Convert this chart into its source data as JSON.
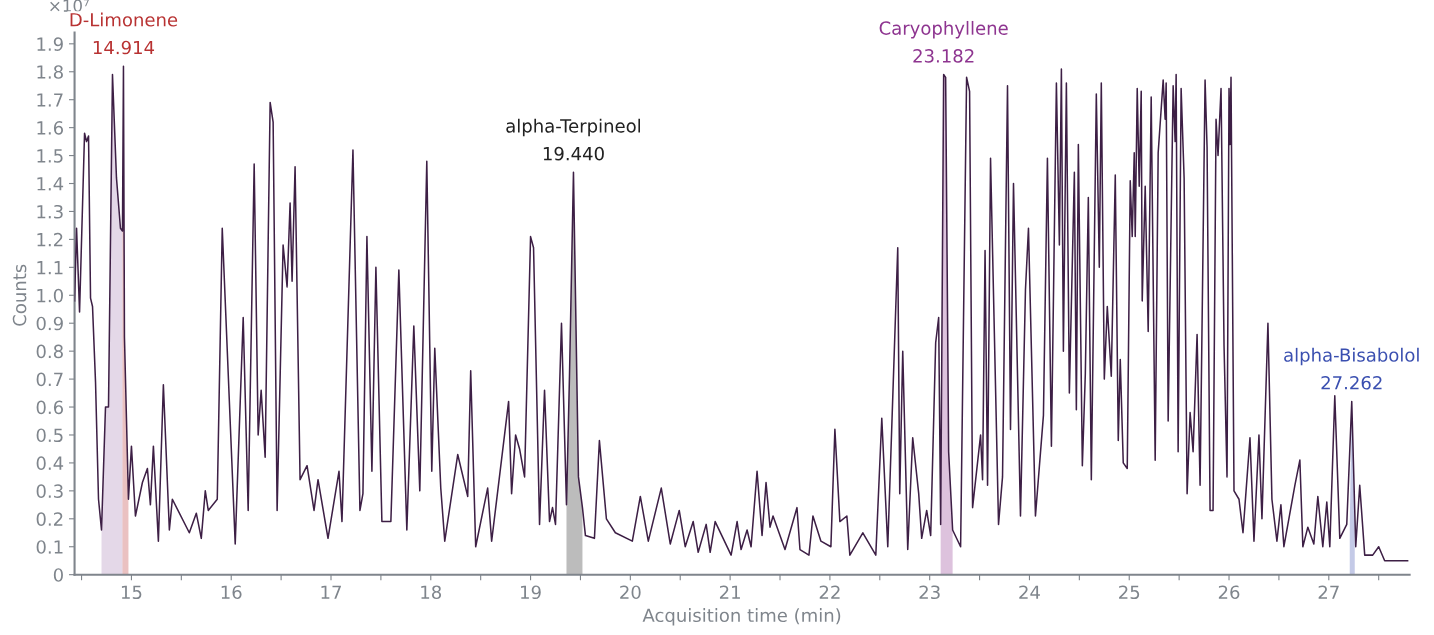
{
  "chart_data": {
    "type": "line",
    "xlabel": "Acquisition time (min)",
    "ylabel": "Counts",
    "xlim": [
      14.43,
      27.81
    ],
    "ylim": [
      0,
      2.0
    ],
    "xticks": [
      {
        "value": 14.5,
        "label": null
      },
      15,
      {
        "value": 15.5,
        "label": null
      },
      16,
      {
        "value": 16.5,
        "label": null
      },
      17,
      {
        "value": 17.5,
        "label": null
      },
      18,
      {
        "value": 18.5,
        "label": null
      },
      19,
      {
        "value": 19.5,
        "label": null
      },
      20,
      {
        "value": 20.5,
        "label": null
      },
      21,
      {
        "value": 21.5,
        "label": null
      },
      22,
      {
        "value": 22.5,
        "label": null
      },
      23,
      {
        "value": 23.5,
        "label": null
      },
      24,
      {
        "value": 24.5,
        "label": null
      },
      25,
      {
        "value": 25.5,
        "label": null
      },
      26,
      {
        "value": 26.5,
        "label": null
      },
      27,
      {
        "value": 27.5,
        "label": null
      }
    ],
    "yticks": [
      0,
      0.1,
      0.2,
      0.3,
      0.4,
      0.5,
      0.6,
      0.7,
      0.8,
      0.9,
      {
        "value": 1.0,
        "label": "1.0"
      },
      1.1,
      1.2,
      1.3,
      1.4,
      1.5,
      1.6,
      1.7,
      1.8,
      1.9
    ],
    "grid": false,
    "legend": false,
    "marker": "none",
    "line_style": "solid",
    "series": [
      {
        "color": "#3d1f45",
        "x": [
          14.43,
          14.45,
          14.48,
          14.53,
          14.55,
          14.57,
          14.59,
          14.61,
          14.64,
          14.67,
          14.7,
          14.74,
          14.77,
          14.81,
          14.85,
          14.89,
          14.91,
          14.92,
          14.93,
          14.97,
          15.0,
          15.04,
          15.11,
          15.16,
          15.19,
          15.22,
          15.27,
          15.32,
          15.38,
          15.41,
          15.58,
          15.65,
          15.7,
          15.74,
          15.77,
          15.86,
          15.91,
          16.04,
          16.12,
          16.17,
          16.23,
          16.27,
          16.3,
          16.34,
          16.39,
          16.42,
          16.46,
          16.52,
          16.56,
          16.59,
          16.61,
          16.64,
          16.69,
          16.76,
          16.83,
          16.87,
          16.97,
          17.08,
          17.11,
          17.22,
          17.29,
          17.32,
          17.36,
          17.41,
          17.45,
          17.51,
          17.6,
          17.68,
          17.76,
          17.83,
          17.89,
          17.96,
          18.01,
          18.04,
          18.1,
          18.14,
          18.27,
          18.37,
          18.4,
          18.45,
          18.57,
          18.61,
          18.78,
          18.81,
          18.85,
          18.89,
          18.94,
          19.0,
          19.03,
          19.09,
          19.14,
          19.19,
          19.22,
          19.25,
          19.31,
          19.36,
          19.39,
          19.43,
          19.48,
          19.52,
          19.55,
          19.64,
          19.69,
          19.76,
          19.85,
          20.02,
          20.1,
          20.18,
          20.31,
          20.4,
          20.49,
          20.55,
          20.63,
          20.68,
          20.76,
          20.8,
          20.85,
          21.01,
          21.07,
          21.11,
          21.17,
          21.21,
          21.27,
          21.32,
          21.36,
          21.4,
          21.43,
          21.55,
          21.67,
          21.7,
          21.79,
          21.83,
          21.91,
          22.01,
          22.05,
          22.1,
          22.17,
          22.2,
          22.33,
          22.46,
          22.52,
          22.58,
          22.68,
          22.7,
          22.73,
          22.78,
          22.83,
          22.89,
          22.92,
          22.97,
          23.01,
          23.06,
          23.09,
          23.11,
          23.14,
          23.16,
          23.19,
          23.23,
          23.31,
          23.37,
          23.4,
          23.43,
          23.51,
          23.53,
          23.555,
          23.58,
          23.61,
          23.69,
          23.73,
          23.78,
          23.81,
          23.84,
          23.91,
          23.96,
          23.99,
          24.06,
          24.14,
          24.18,
          24.22,
          24.27,
          24.3,
          24.32,
          24.34,
          24.37,
          24.4,
          24.45,
          24.47,
          24.49,
          24.53,
          24.56,
          24.59,
          24.62,
          24.67,
          24.7,
          24.72,
          24.75,
          24.78,
          24.82,
          24.86,
          24.89,
          24.91,
          24.94,
          24.98,
          25.01,
          25.03,
          25.05,
          25.06,
          25.08,
          25.1,
          25.12,
          25.13,
          25.16,
          25.19,
          25.22,
          25.26,
          25.29,
          25.34,
          25.36,
          25.37,
          25.39,
          25.44,
          25.46,
          25.47,
          25.49,
          25.52,
          25.55,
          25.58,
          25.61,
          25.64,
          25.68,
          25.71,
          25.76,
          25.78,
          25.81,
          25.84,
          25.87,
          25.89,
          25.92,
          25.95,
          25.98,
          26.0,
          26.01,
          26.02,
          26.05,
          26.1,
          26.14,
          26.21,
          26.25,
          26.3,
          26.33,
          26.39,
          26.43,
          26.48,
          26.52,
          26.55,
          26.66,
          26.71,
          26.74,
          26.79,
          26.85,
          26.89,
          26.94,
          26.98,
          27.01,
          27.06,
          27.11,
          27.18,
          27.23,
          27.27,
          27.31,
          27.36,
          27.44,
          27.5,
          27.56,
          27.67,
          27.79
        ],
        "values": [
          0.98,
          1.24,
          0.94,
          1.58,
          1.55,
          1.57,
          0.99,
          0.96,
          0.69,
          0.27,
          0.16,
          0.6,
          0.6,
          1.79,
          1.42,
          1.24,
          1.23,
          1.82,
          0.85,
          0.27,
          0.46,
          0.21,
          0.33,
          0.38,
          0.25,
          0.46,
          0.12,
          0.68,
          0.16,
          0.27,
          0.15,
          0.22,
          0.13,
          0.3,
          0.23,
          0.27,
          1.24,
          0.11,
          0.92,
          0.23,
          1.47,
          0.5,
          0.66,
          0.42,
          1.69,
          1.62,
          0.23,
          1.18,
          1.03,
          1.33,
          1.05,
          1.46,
          0.34,
          0.39,
          0.23,
          0.34,
          0.13,
          0.37,
          0.19,
          1.52,
          0.23,
          0.29,
          1.21,
          0.37,
          1.1,
          0.19,
          0.19,
          1.09,
          0.16,
          0.89,
          0.3,
          1.48,
          0.37,
          0.81,
          0.31,
          0.12,
          0.43,
          0.28,
          0.73,
          0.1,
          0.31,
          0.12,
          0.62,
          0.29,
          0.5,
          0.45,
          0.35,
          1.21,
          1.17,
          0.18,
          0.66,
          0.19,
          0.24,
          0.18,
          0.9,
          0.25,
          0.71,
          1.44,
          0.35,
          0.24,
          0.14,
          0.13,
          0.48,
          0.2,
          0.15,
          0.12,
          0.28,
          0.12,
          0.31,
          0.11,
          0.23,
          0.1,
          0.19,
          0.08,
          0.18,
          0.08,
          0.19,
          0.07,
          0.19,
          0.09,
          0.16,
          0.1,
          0.37,
          0.14,
          0.33,
          0.17,
          0.21,
          0.09,
          0.24,
          0.09,
          0.07,
          0.21,
          0.12,
          0.1,
          0.52,
          0.19,
          0.21,
          0.07,
          0.15,
          0.07,
          0.56,
          0.1,
          1.17,
          0.29,
          0.8,
          0.09,
          0.49,
          0.29,
          0.13,
          0.23,
          0.14,
          0.83,
          0.92,
          0.18,
          1.79,
          1.78,
          0.44,
          0.16,
          0.1,
          1.78,
          1.73,
          0.24,
          0.5,
          0.34,
          1.16,
          0.32,
          1.49,
          0.18,
          0.35,
          1.75,
          0.52,
          1.4,
          0.21,
          1.02,
          1.24,
          0.21,
          0.57,
          1.49,
          0.46,
          1.76,
          1.18,
          1.81,
          0.8,
          1.76,
          0.65,
          1.44,
          0.59,
          1.54,
          0.39,
          0.72,
          1.35,
          0.34,
          1.72,
          1.1,
          1.76,
          0.7,
          0.96,
          0.71,
          1.43,
          0.48,
          0.77,
          0.4,
          0.38,
          1.41,
          1.21,
          1.51,
          1.21,
          1.74,
          1.39,
          1.73,
          0.98,
          1.39,
          0.87,
          1.71,
          0.41,
          1.51,
          1.77,
          1.63,
          1.76,
          0.55,
          1.75,
          1.55,
          1.79,
          0.44,
          1.74,
          1.42,
          0.29,
          0.58,
          0.44,
          0.86,
          0.32,
          1.77,
          1.53,
          0.23,
          0.23,
          1.63,
          1.5,
          1.74,
          0.82,
          0.35,
          1.74,
          1.54,
          1.78,
          0.3,
          0.27,
          0.15,
          0.49,
          0.12,
          0.5,
          0.2,
          0.9,
          0.27,
          0.12,
          0.25,
          0.1,
          0.32,
          0.41,
          0.1,
          0.17,
          0.11,
          0.28,
          0.1,
          0.26,
          0.1,
          0.64,
          0.13,
          0.18,
          0.62,
          0.1,
          0.32,
          0.07,
          0.07,
          0.1,
          0.05,
          0.05,
          0.05
        ]
      },
      {
        "type": "area",
        "color": "#a47db3",
        "x": [
          14.7,
          14.74,
          14.77,
          14.81,
          14.85,
          14.89,
          14.91
        ],
        "values": [
          0.16,
          0.6,
          0.6,
          1.79,
          1.42,
          1.24,
          1.23
        ]
      },
      {
        "type": "area",
        "name": "D-Limonene",
        "color": "#b83232",
        "x": [
          14.91,
          14.92,
          14.93,
          14.97
        ],
        "values": [
          1.23,
          1.82,
          0.85,
          0.27
        ]
      },
      {
        "type": "area",
        "name": "alpha-Terpineol",
        "color": "#222222",
        "x": [
          19.36,
          19.39,
          19.43,
          19.48,
          19.52
        ],
        "values": [
          0.25,
          0.71,
          1.44,
          0.35,
          0.24
        ]
      },
      {
        "type": "area",
        "name": "Caryophyllene",
        "color": "#8e3590",
        "x": [
          23.11,
          23.14,
          23.16,
          23.19,
          23.23
        ],
        "values": [
          0.18,
          1.79,
          1.78,
          0.44,
          0.16
        ]
      },
      {
        "type": "area",
        "name": "alpha-Bisabolol",
        "color": "#3a4fb0",
        "x": [
          27.21,
          27.23,
          27.26
        ],
        "values": [
          0.18,
          0.62,
          0.2
        ]
      }
    ],
    "annotations": [
      "×10⁷",
      "14.914",
      "19.440",
      "23.182",
      "27.262"
    ]
  }
}
